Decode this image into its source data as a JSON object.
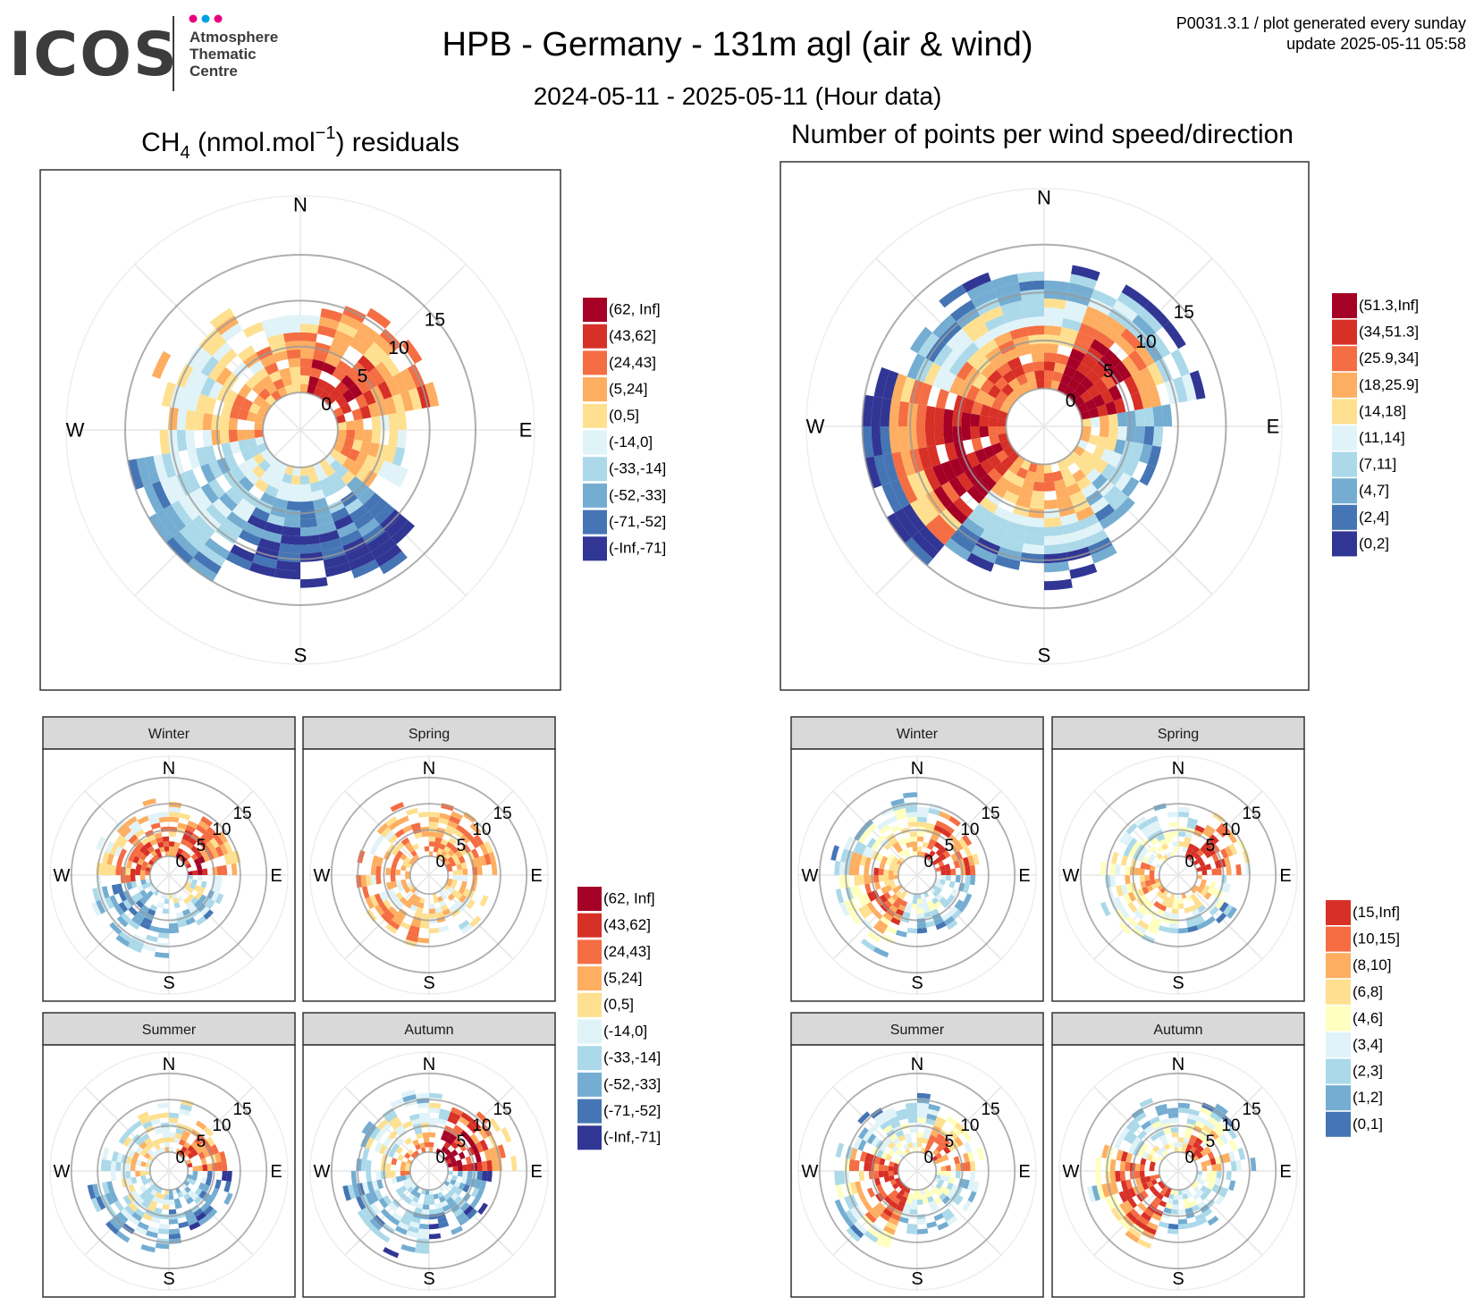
{
  "header": {
    "logo_text": "ICOS",
    "logo_sub": [
      "Atmosphere",
      "Thematic",
      "Centre"
    ],
    "logo_dot_colors": [
      "#e6007e",
      "#00a0e3",
      "#e6007e"
    ],
    "title": "HPB - Germany - 131m agl (air & wind)",
    "subtitle": "2024-05-11 - 2025-05-11 (Hour data)",
    "meta_line1": "P0031.3.1 / plot generated every sunday",
    "meta_line2": "update  2025-05-11 05:58"
  },
  "panels": {
    "residuals_title_prefix": "CH",
    "residuals_title_sub": "4",
    "residuals_title_mid": " (nmol.mol",
    "residuals_title_sup": "−1",
    "residuals_title_suffix": ") residuals",
    "points_title": "Number of points per wind speed/direction",
    "season_labels": [
      "Winter",
      "Spring",
      "Summer",
      "Autumn"
    ]
  },
  "chart_data": [
    {
      "id": "residuals",
      "type": "heatmap",
      "subtype": "polar",
      "directions": [
        "N",
        "E",
        "S",
        "W"
      ],
      "radial_ticks": [
        "0",
        "5",
        "10",
        "15"
      ],
      "legend": [
        {
          "label": "(62, Inf]",
          "color": "#a50026"
        },
        {
          "label": "(43,62]",
          "color": "#d73027"
        },
        {
          "label": "(24,43]",
          "color": "#f46d43"
        },
        {
          "label": "(5,24]",
          "color": "#fdae61"
        },
        {
          "label": "(0,5]",
          "color": "#fee090"
        },
        {
          "label": "(-14,0]",
          "color": "#e0f3f8"
        },
        {
          "label": "(-33,-14]",
          "color": "#abd9e9"
        },
        {
          "label": "(-52,-33]",
          "color": "#74add1"
        },
        {
          "label": "(-71,-52]",
          "color": "#4575b4"
        },
        {
          "label": "(-Inf,-71]",
          "color": "#313695"
        }
      ],
      "pattern": {
        "sectors": [
          {
            "from": 10,
            "to": 80,
            "maxSpeed": 11,
            "levels": [
              1,
              2,
              3,
              2,
              3
            ]
          },
          {
            "from": 80,
            "to": 130,
            "maxSpeed": 8,
            "levels": [
              3,
              4,
              5,
              5,
              6
            ]
          },
          {
            "from": 130,
            "to": 215,
            "maxSpeed": 13,
            "levels": [
              5,
              7,
              8,
              9,
              8
            ]
          },
          {
            "from": 215,
            "to": 260,
            "maxSpeed": 16,
            "levels": [
              5,
              6,
              6,
              6,
              7
            ]
          },
          {
            "from": 260,
            "to": 330,
            "maxSpeed": 12,
            "levels": [
              3,
              4,
              5,
              4,
              3
            ]
          },
          {
            "from": 330,
            "to": 370,
            "maxSpeed": 9,
            "levels": [
              3,
              3,
              5,
              4,
              5
            ]
          }
        ]
      }
    },
    {
      "id": "points",
      "type": "heatmap",
      "subtype": "polar",
      "directions": [
        "N",
        "E",
        "S",
        "W"
      ],
      "radial_ticks": [
        "0",
        "5",
        "10",
        "15"
      ],
      "legend": [
        {
          "label": "(51.3,Inf]",
          "color": "#a50026"
        },
        {
          "label": "(34,51.3]",
          "color": "#d73027"
        },
        {
          "label": "(25.9,34]",
          "color": "#f46d43"
        },
        {
          "label": "(18,25.9]",
          "color": "#fdae61"
        },
        {
          "label": "(14,18]",
          "color": "#fee090"
        },
        {
          "label": "(11,14]",
          "color": "#e0f3f8"
        },
        {
          "label": "(7,11]",
          "color": "#abd9e9"
        },
        {
          "label": "(4,7]",
          "color": "#74add1"
        },
        {
          "label": "(2,4]",
          "color": "#4575b4"
        },
        {
          "label": "(0,2]",
          "color": "#313695"
        }
      ],
      "pattern": {
        "sectors": [
          {
            "from": 20,
            "to": 80,
            "maxSpeed": 13,
            "levels": [
              0,
              1,
              3,
              6,
              9
            ]
          },
          {
            "from": 80,
            "to": 150,
            "maxSpeed": 9,
            "levels": [
              4,
              6,
              7,
              8,
              9
            ]
          },
          {
            "from": 150,
            "to": 220,
            "maxSpeed": 12,
            "levels": [
              3,
              4,
              6,
              8,
              9
            ]
          },
          {
            "from": 220,
            "to": 290,
            "maxSpeed": 16,
            "levels": [
              1,
              0,
              1,
              3,
              9
            ]
          },
          {
            "from": 290,
            "to": 380,
            "maxSpeed": 13,
            "levels": [
              2,
              3,
              5,
              7,
              9
            ]
          }
        ]
      }
    },
    {
      "id": "residuals_seasonal",
      "type": "heatmap",
      "subtype": "polar",
      "facets": [
        "Winter",
        "Spring",
        "Summer",
        "Autumn"
      ],
      "directions": [
        "N",
        "E",
        "S",
        "W"
      ],
      "radial_ticks": [
        "0",
        "5",
        "10",
        "15"
      ],
      "legend": [
        {
          "label": "(62, Inf]",
          "color": "#a50026"
        },
        {
          "label": "(43,62]",
          "color": "#d73027"
        },
        {
          "label": "(24,43]",
          "color": "#f46d43"
        },
        {
          "label": "(5,24]",
          "color": "#fdae61"
        },
        {
          "label": "(0,5]",
          "color": "#fee090"
        },
        {
          "label": "(-14,0]",
          "color": "#e0f3f8"
        },
        {
          "label": "(-33,-14]",
          "color": "#abd9e9"
        },
        {
          "label": "(-52,-33]",
          "color": "#74add1"
        },
        {
          "label": "(-71,-52]",
          "color": "#4575b4"
        },
        {
          "label": "(-Inf,-71]",
          "color": "#313695"
        }
      ]
    },
    {
      "id": "points_seasonal",
      "type": "heatmap",
      "subtype": "polar",
      "facets": [
        "Winter",
        "Spring",
        "Summer",
        "Autumn"
      ],
      "directions": [
        "N",
        "E",
        "S",
        "W"
      ],
      "radial_ticks": [
        "0",
        "5",
        "10",
        "15"
      ],
      "legend": [
        {
          "label": "(15,Inf]",
          "color": "#d73027"
        },
        {
          "label": "(10,15]",
          "color": "#f46d43"
        },
        {
          "label": "(8,10]",
          "color": "#fdae61"
        },
        {
          "label": "(6,8]",
          "color": "#fee090"
        },
        {
          "label": "(4,6]",
          "color": "#ffffbf"
        },
        {
          "label": "(3,4]",
          "color": "#e0f3f8"
        },
        {
          "label": "(2,3]",
          "color": "#abd9e9"
        },
        {
          "label": "(1,2]",
          "color": "#74add1"
        },
        {
          "label": "(0,1]",
          "color": "#4575b4"
        }
      ]
    }
  ]
}
